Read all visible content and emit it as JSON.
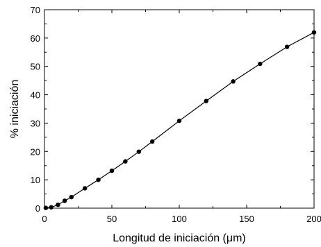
{
  "chart_data": {
    "type": "line",
    "title": "",
    "xlabel": "Longitud de iniciación (μm)",
    "ylabel": "% iniciación",
    "xlim": [
      0,
      200
    ],
    "ylim": [
      0,
      70
    ],
    "xticks": [
      0,
      50,
      100,
      150,
      200
    ],
    "yticks": [
      0,
      10,
      20,
      30,
      40,
      50,
      60,
      70
    ],
    "xtick_labels": [
      "0",
      "50",
      "100",
      "150",
      "200"
    ],
    "ytick_labels": [
      "0",
      "10",
      "20",
      "30",
      "40",
      "50",
      "60",
      "70"
    ],
    "grid": false,
    "legend": "none",
    "series": [
      {
        "marker": "filled-circle",
        "color": "#000000",
        "x": [
          1,
          5,
          10,
          15,
          20,
          30,
          40,
          50,
          60,
          70,
          80,
          100,
          120,
          140,
          160,
          180,
          200
        ],
        "y": [
          0.1,
          0.3,
          1.2,
          2.6,
          3.9,
          7.0,
          10.0,
          13.2,
          16.5,
          19.9,
          23.5,
          30.8,
          37.8,
          44.7,
          50.9,
          56.9,
          62.0
        ]
      }
    ]
  }
}
